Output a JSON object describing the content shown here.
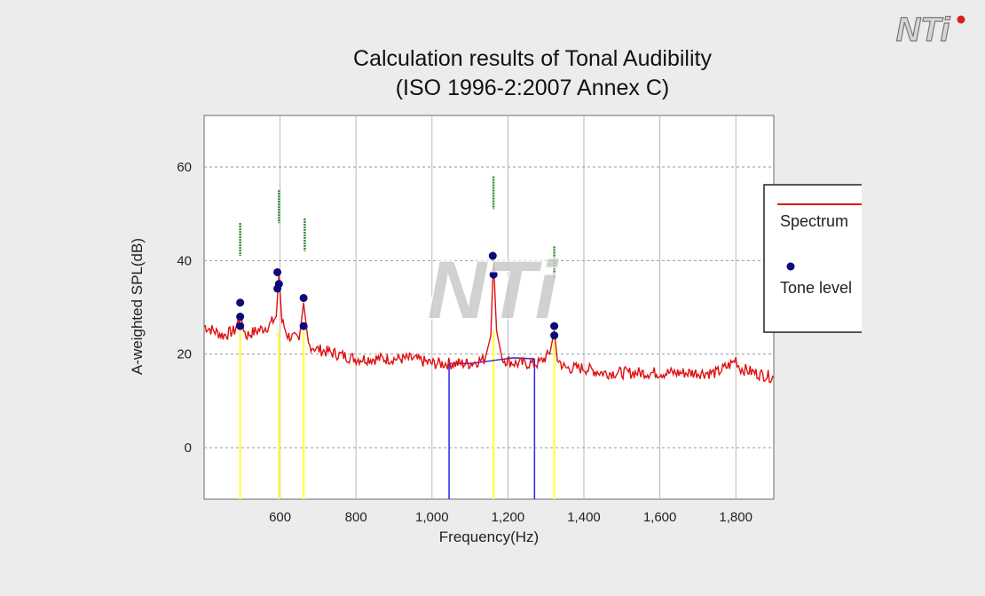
{
  "logo": {
    "text": "NTi"
  },
  "watermark": {
    "text": "NTi"
  },
  "chart_data": {
    "type": "line",
    "title": "Calculation results of Tonal Audibility",
    "subtitle": "(ISO 1996-2:2007 Annex C)",
    "xlabel": "Frequency(Hz)",
    "ylabel": "A-weighted SPL(dB)",
    "xlim": [
      400,
      1900
    ],
    "ylim": [
      -11,
      71
    ],
    "x_ticks": [
      600,
      800,
      1000,
      1200,
      1400,
      1600,
      1800
    ],
    "x_tick_labels": [
      "600",
      "800",
      "1,000",
      "1,200",
      "1,400",
      "1,600",
      "1,800"
    ],
    "y_ticks": [
      0,
      20,
      40,
      60
    ],
    "y_tick_labels": [
      "0",
      "20",
      "40",
      "60"
    ],
    "grid": true,
    "legend_position": "right",
    "colors": {
      "spectrum": "#e01010",
      "tone_level": "#0a0a78",
      "tone_marker": "#ffff50",
      "band": "#2a2ae0",
      "audibility": "#2e8b2e"
    },
    "series": [
      {
        "name": "Spectrum",
        "x": [
          400,
          450,
          480,
          495,
          510,
          540,
          570,
          590,
          597,
          605,
          620,
          650,
          662,
          675,
          700,
          750,
          800,
          850,
          900,
          950,
          1000,
          1050,
          1100,
          1140,
          1155,
          1162,
          1170,
          1185,
          1220,
          1280,
          1310,
          1322,
          1330,
          1350,
          1400,
          1450,
          1500,
          1550,
          1600,
          1650,
          1700,
          1750,
          1790,
          1800,
          1810,
          1850,
          1900
        ],
        "y": [
          26,
          24,
          25,
          28,
          24,
          25,
          26,
          28,
          37,
          27,
          24,
          23,
          31,
          22,
          21,
          20,
          19,
          19,
          19,
          19,
          18,
          18,
          18,
          19,
          24,
          40,
          25,
          19,
          18,
          18,
          20,
          25,
          19,
          17,
          17,
          16,
          16,
          16,
          16,
          16,
          16,
          16,
          18,
          19,
          17,
          16,
          15
        ]
      },
      {
        "name": "Tone level",
        "x": [
          495,
          495,
          495,
          593,
          593,
          597,
          662,
          662,
          1160,
          1162,
          1322,
          1322
        ],
        "y": [
          31,
          28,
          26,
          37.5,
          34,
          35,
          32,
          26,
          41,
          37,
          26,
          24
        ]
      }
    ],
    "tone_marker_frequencies": [
      495,
      597,
      662,
      1162,
      1322
    ],
    "audibility_markers": [
      {
        "x": 495,
        "y_from": 41,
        "y_to": 48
      },
      {
        "x": 597,
        "y_from": 48,
        "y_to": 55
      },
      {
        "x": 665,
        "y_from": 42,
        "y_to": 49
      },
      {
        "x": 1162,
        "y_from": 51,
        "y_to": 58
      },
      {
        "x": 1322,
        "y_from": 36,
        "y_to": 43
      }
    ],
    "critical_band": {
      "x_from": 1045,
      "x_to": 1270,
      "levels": [
        18,
        18,
        18.6,
        19.2,
        19
      ]
    }
  }
}
